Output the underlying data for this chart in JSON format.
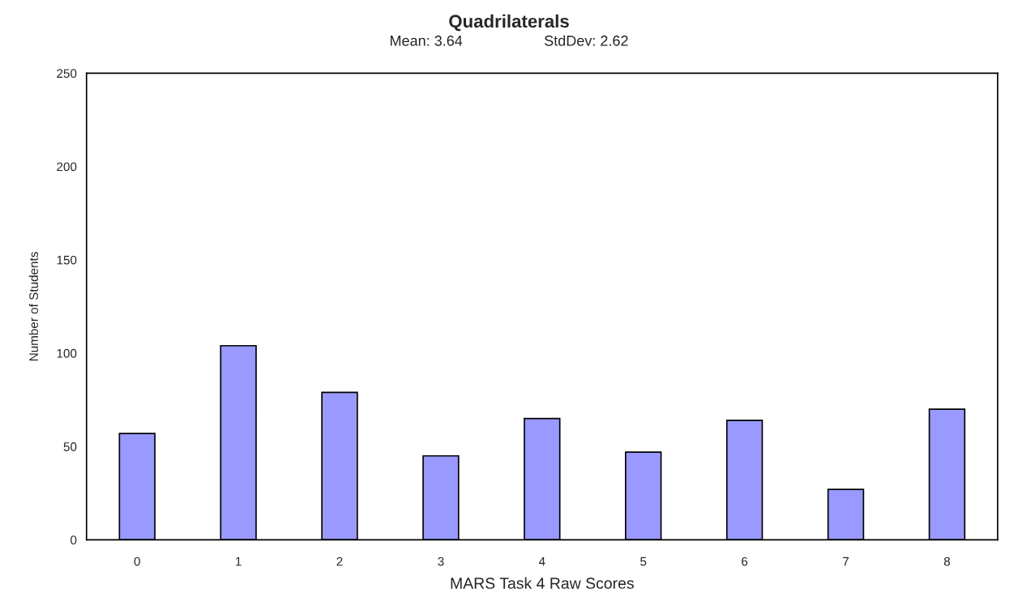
{
  "chart_data": {
    "type": "bar",
    "title": "Quadrilaterals",
    "subtitle": "Mean: 3.64                    StdDev: 2.62",
    "xlabel": "MARS Task 4 Raw Scores",
    "ylabel": "Number of Students",
    "categories": [
      "0",
      "1",
      "2",
      "3",
      "4",
      "5",
      "6",
      "7",
      "8"
    ],
    "values": [
      57,
      104,
      79,
      45,
      65,
      47,
      64,
      27,
      70
    ],
    "color": "#9999ff",
    "ylim": [
      0,
      250
    ],
    "yticks": [
      0,
      50,
      100,
      150,
      200,
      250
    ],
    "grid": false,
    "legend": false
  }
}
